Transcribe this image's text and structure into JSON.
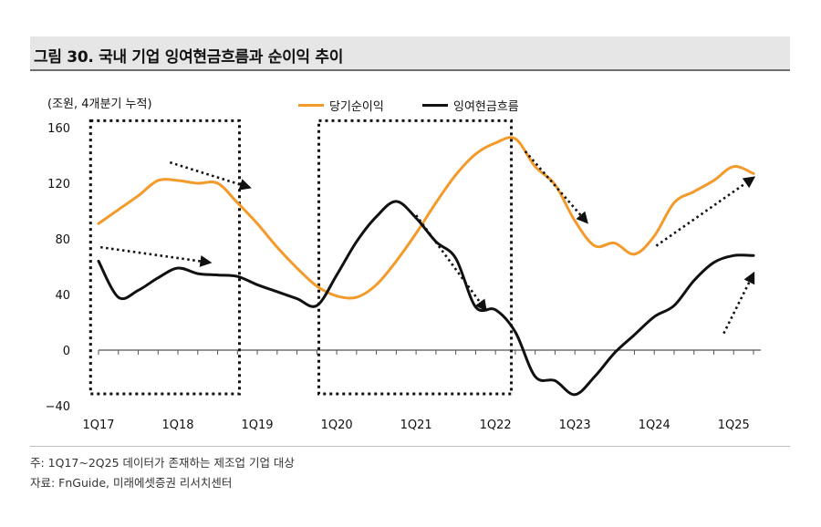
{
  "title": "그림 30. 국내 기업 잉여현금흐름과 순이익 추이",
  "chart_data": {
    "type": "line",
    "title": "그림 30. 국내 기업 잉여현금흐름과 순이익 추이",
    "unit_label": "(조원, 4개분기 누적)",
    "ylim": [
      -40,
      160
    ],
    "yticks": [
      "160",
      "120",
      "80",
      "40",
      "0",
      "−40"
    ],
    "ytick_values": [
      160,
      120,
      80,
      40,
      0,
      -40
    ],
    "xtick_labels": [
      "1Q17",
      "1Q18",
      "1Q19",
      "1Q20",
      "1Q21",
      "1Q22",
      "1Q23",
      "1Q24",
      "1Q25"
    ],
    "x": [
      "1Q17",
      "2Q17",
      "3Q17",
      "4Q17",
      "1Q18",
      "2Q18",
      "3Q18",
      "4Q18",
      "1Q19",
      "2Q19",
      "3Q19",
      "4Q19",
      "1Q20",
      "2Q20",
      "3Q20",
      "4Q20",
      "1Q21",
      "2Q21",
      "3Q21",
      "4Q21",
      "1Q22",
      "2Q22",
      "3Q22",
      "4Q22",
      "1Q23",
      "2Q23",
      "3Q23",
      "4Q23",
      "1Q24",
      "2Q24",
      "3Q24",
      "4Q24",
      "1Q25",
      "2Q25"
    ],
    "series": [
      {
        "name": "당기순이익",
        "color": "#f39a2a",
        "values": [
          91,
          101,
          111,
          122,
          122,
          120,
          120,
          106,
          91,
          74,
          59,
          46,
          39,
          38,
          47,
          64,
          84,
          106,
          126,
          141,
          149,
          152,
          132,
          119,
          93,
          75,
          77,
          69,
          82,
          106,
          114,
          122,
          132,
          127
        ]
      },
      {
        "name": "잉여현금흐름",
        "color": "#111111",
        "values": [
          64,
          38,
          43,
          52,
          59,
          55,
          54,
          53,
          47,
          42,
          37,
          32,
          54,
          78,
          96,
          107,
          95,
          78,
          66,
          31,
          29,
          13,
          -19,
          -22,
          -32,
          -19,
          -2,
          11,
          24,
          32,
          50,
          63,
          68,
          68
        ]
      }
    ],
    "annotations": {
      "boxes": [
        "2017~2019 구간",
        "2020~2022 구간"
      ],
      "arrows": [
        "당기순이익 하락",
        "잉여현금흐름 하락",
        "잉여현금흐름 하락",
        "당기순이익 하락",
        "당기순이익 상승",
        "잉여현금흐름 상승"
      ]
    }
  },
  "notes": {
    "line1": "주: 1Q17~2Q25 데이터가 존재하는 제조업 기업 대상",
    "line2": "자료: FnGuide, 미래에셋증권 리서치센터"
  }
}
